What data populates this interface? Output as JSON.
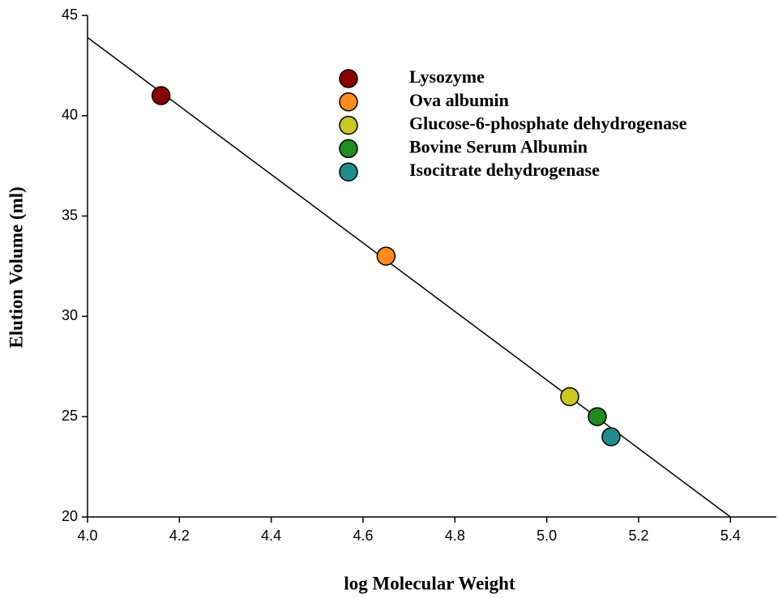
{
  "chart_data": {
    "type": "scatter",
    "xlabel": "log Molecular Weight",
    "ylabel": "Elution Volume (ml)",
    "xlim": [
      4.0,
      5.5
    ],
    "ylim": [
      20,
      45
    ],
    "xticks": [
      {
        "value": 4.0,
        "label": "4.0"
      },
      {
        "value": 4.2,
        "label": "4.2"
      },
      {
        "value": 4.4,
        "label": "4.4"
      },
      {
        "value": 4.6,
        "label": "4.6"
      },
      {
        "value": 4.8,
        "label": "4.8"
      },
      {
        "value": 5.0,
        "label": "5.0"
      },
      {
        "value": 5.2,
        "label": "5.2"
      },
      {
        "value": 5.4,
        "label": "5.4"
      }
    ],
    "yticks": [
      20,
      25,
      30,
      35,
      40,
      45
    ],
    "series": [
      {
        "name": "Lysozyme",
        "color": "#8b0000",
        "x": [
          4.16
        ],
        "values": [
          41
        ]
      },
      {
        "name": "Ova albumin",
        "color": "#ff8c1a",
        "x": [
          4.65
        ],
        "values": [
          33
        ]
      },
      {
        "name": "Glucose-6-phosphate dehydrogenase",
        "color": "#c8c81e",
        "x": [
          5.05
        ],
        "values": [
          26
        ]
      },
      {
        "name": "Bovine Serum Albumin",
        "color": "#1e8c1e",
        "x": [
          5.11
        ],
        "values": [
          25
        ]
      },
      {
        "name": "Isocitrate dehydrogenase",
        "color": "#1e8c8c",
        "x": [
          5.14
        ],
        "values": [
          24
        ]
      }
    ],
    "fit_line": {
      "x": [
        4.0,
        5.4
      ],
      "values": [
        43.9,
        20
      ],
      "color": "#000000"
    }
  }
}
